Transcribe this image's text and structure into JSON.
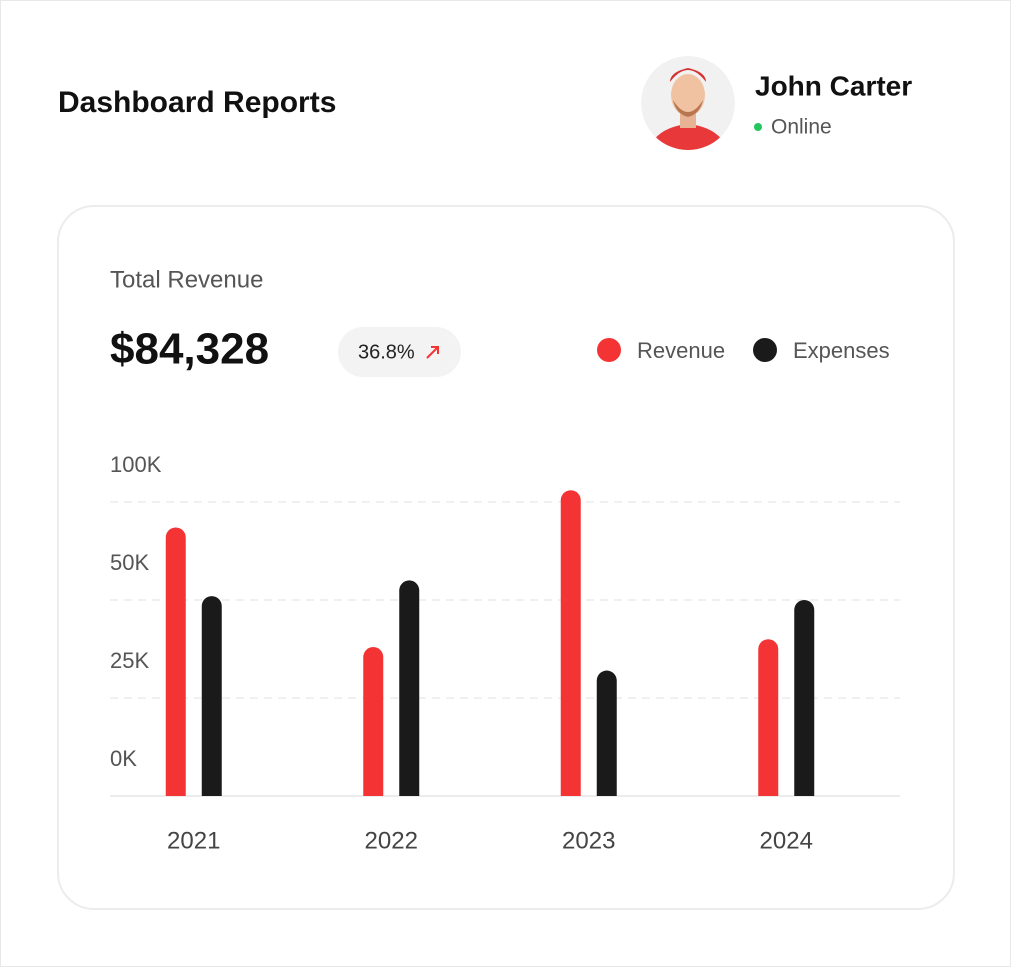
{
  "header": {
    "title": "Dashboard Reports",
    "user_name": "John Carter",
    "status": "Online"
  },
  "summary": {
    "value": "$84,328",
    "change": "36.8%"
  },
  "chart_data": {
    "type": "bar",
    "title": "Total Revenue",
    "categories": [
      "2021",
      "2022",
      "2023",
      "2024"
    ],
    "series": [
      {
        "name": "Revenue",
        "color": "#f43334",
        "values": [
          87000,
          38000,
          106000,
          40000
        ]
      },
      {
        "name": "Expenses",
        "color": "#1a1a1a",
        "values": [
          52000,
          60000,
          32000,
          50000
        ]
      }
    ],
    "ylim": [
      0,
      110000
    ],
    "yticks": [
      {
        "value": 0,
        "label": "0K"
      },
      {
        "value": 25000,
        "label": "25K"
      },
      {
        "value": 50000,
        "label": "50K"
      },
      {
        "value": 100000,
        "label": "100K"
      }
    ],
    "grid": true,
    "legend": "top-right"
  }
}
